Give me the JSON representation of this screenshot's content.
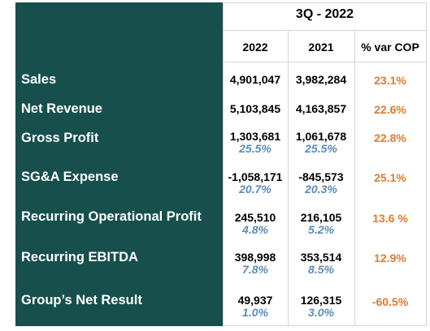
{
  "table": {
    "period": "3Q - 2022",
    "columns": [
      "2022",
      "2021",
      "% var COP"
    ],
    "rows": [
      {
        "label": "Sales",
        "v2022": "4,901,047",
        "v2021": "3,982,284",
        "var": "23.1%",
        "p2022": "",
        "p2021": ""
      },
      {
        "label": "Net Revenue",
        "v2022": "5,103,845",
        "v2021": "4,163,857",
        "var": "22.6%",
        "p2022": "",
        "p2021": ""
      },
      {
        "label": "Gross Profit",
        "v2022": "1,303,681",
        "v2021": "1,061,678",
        "var": "22.8%",
        "p2022": "25.5%",
        "p2021": "25.5%"
      },
      {
        "label": "SG&A Expense",
        "v2022": "-1,058,171",
        "v2021": "-845,573",
        "var": "25.1%",
        "p2022": "20.7%",
        "p2021": "20.3%"
      },
      {
        "label": "Recurring Operational Profit",
        "v2022": "245,510",
        "v2021": "216,105",
        "var": "13.6 %",
        "p2022": "4.8%",
        "p2021": "5.2%"
      },
      {
        "label": "Recurring EBITDA",
        "v2022": "398,998",
        "v2021": "353,514",
        "var": "12.9%",
        "p2022": "7.8%",
        "p2021": "8.5%"
      },
      {
        "label": "Group’s Net Result",
        "v2022": "49,937",
        "v2021": "126,315",
        "var": "-60.5%",
        "p2022": "1.0%",
        "p2021": "3.0%"
      }
    ]
  },
  "colors": {
    "label_bg": "#164F4C",
    "var_text": "#E07A2E",
    "pct_text": "#5B8DB8"
  }
}
